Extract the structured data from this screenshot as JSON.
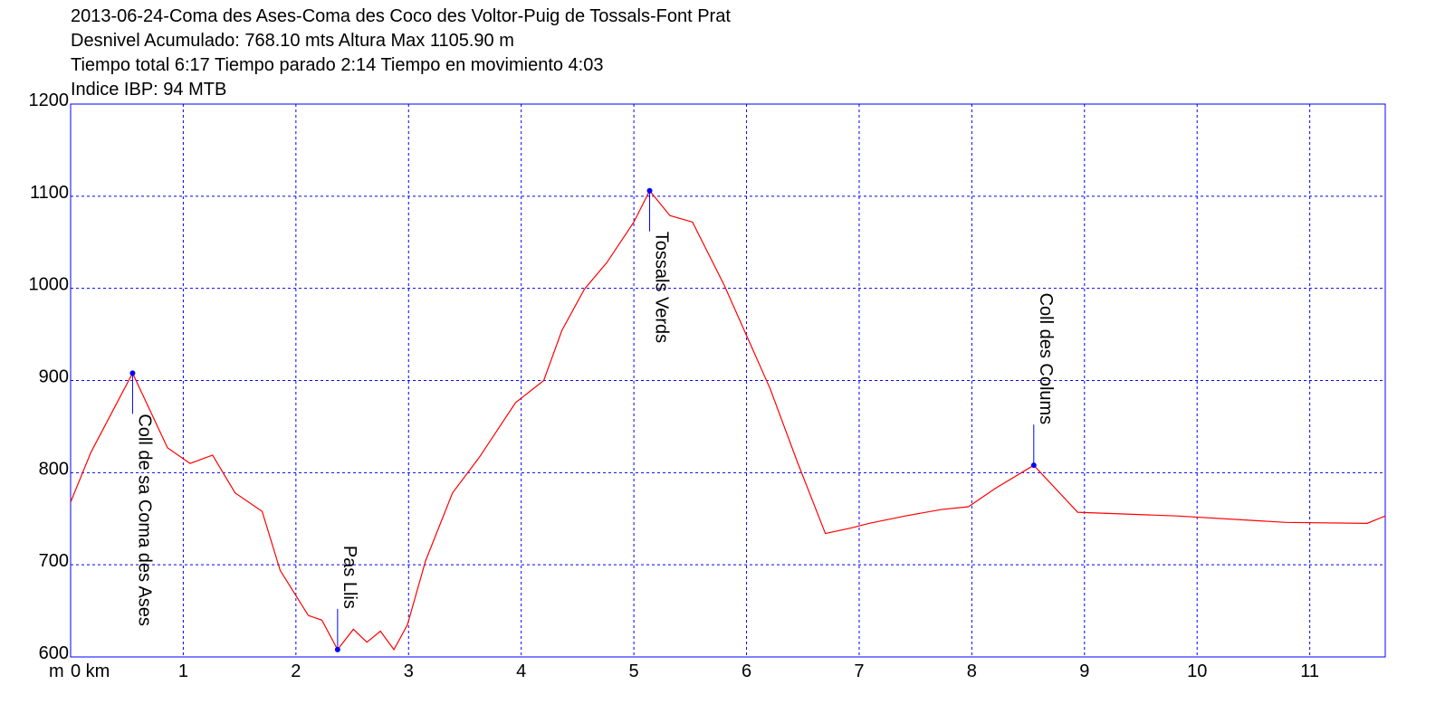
{
  "chart_data": {
    "type": "line",
    "title_lines": [
      "2013-06-24-Coma des Ases-Coma des Coco des Voltor-Puig de Tossals-Font Prat",
      "Desnivel Acumulado: 768.10 mts  Altura Max 1105.90 m",
      "Tiempo total 6:17 Tiempo parado 2:14 Tiempo en movimiento 4:03",
      "Indice IBP: 94 MTB"
    ],
    "y_unit": "m",
    "x": [
      0,
      0.18,
      0.55,
      0.86,
      1.06,
      1.26,
      1.46,
      1.7,
      1.86,
      2.11,
      2.23,
      2.37,
      2.51,
      2.63,
      2.75,
      2.87,
      2.99,
      3.15,
      3.39,
      3.63,
      3.95,
      4.2,
      4.36,
      4.56,
      4.76,
      5.0,
      5.14,
      5.32,
      5.52,
      5.8,
      6.21,
      6.45,
      6.7,
      6.93,
      7.09,
      7.41,
      7.73,
      7.97,
      8.21,
      8.55,
      8.94,
      9.82,
      10.79,
      11.51,
      11.67
    ],
    "values": [
      768,
      822,
      908,
      827,
      810,
      819,
      778,
      758,
      694,
      645,
      640,
      608,
      630,
      616,
      628,
      608,
      635,
      704,
      778,
      817,
      876,
      900,
      954,
      999,
      1028,
      1072,
      1106,
      1079,
      1072,
      1004,
      891,
      812,
      734,
      740,
      745,
      753,
      760,
      763,
      783,
      808,
      757,
      753,
      746,
      745,
      753
    ],
    "color": "#ff0000",
    "waypoints": [
      {
        "name": "Coll de sa Coma des Ases",
        "x": 0.55,
        "y": 908,
        "label_position": "below"
      },
      {
        "name": "Pas Llis",
        "x": 2.37,
        "y": 608,
        "label_position": "above"
      },
      {
        "name": "Tossals Verds",
        "x": 5.14,
        "y": 1106,
        "label_position": "below"
      },
      {
        "name": "Coll des Colums",
        "x": 8.55,
        "y": 808,
        "label_position": "above"
      }
    ],
    "waypoint_color": "#0000ff",
    "xlim": [
      0,
      11.67
    ],
    "ylim": [
      600,
      1200
    ],
    "xticks": [
      {
        "value": 0,
        "label": "0 km"
      },
      1,
      2,
      3,
      4,
      5,
      6,
      7,
      8,
      9,
      10,
      11
    ],
    "yticks": [
      600,
      700,
      800,
      900,
      1000,
      1100,
      1200
    ],
    "grid": true
  }
}
